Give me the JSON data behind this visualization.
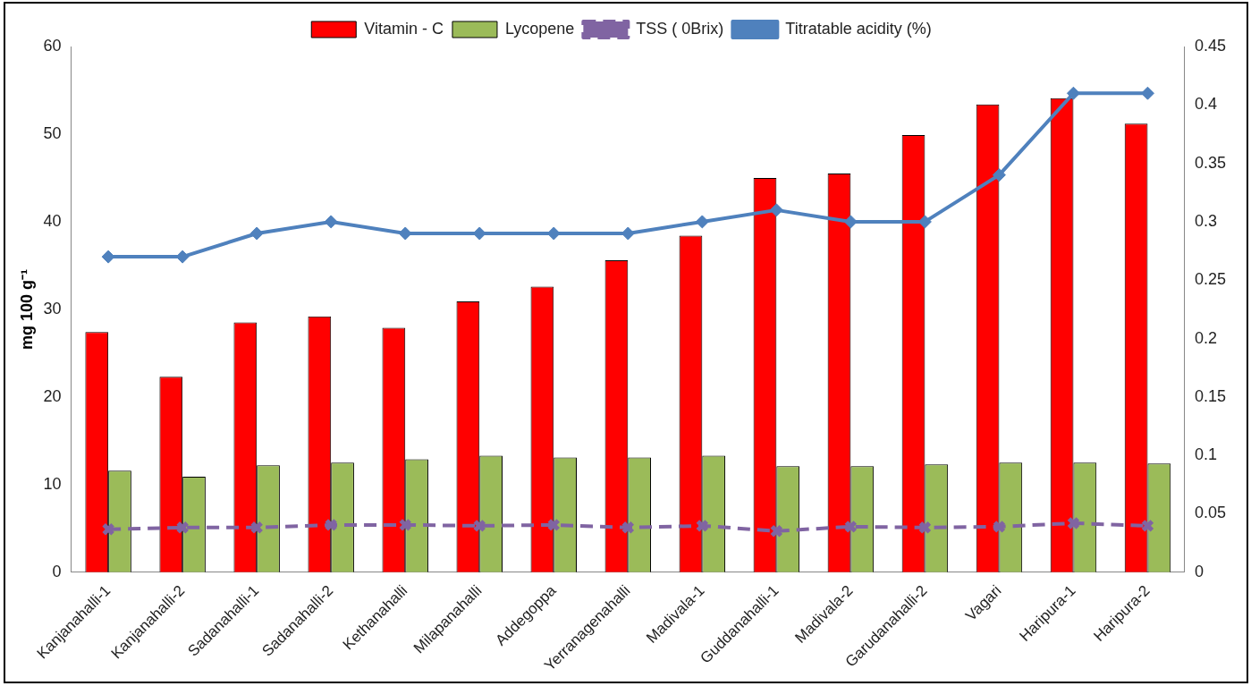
{
  "chart_data": {
    "type": "bar",
    "ylabel": "mg 100 g⁻¹",
    "categories": [
      "Kanjanahalli-1",
      "Kanjanahalli-2",
      "Sadanahalli-1",
      "Sadanahalli-2",
      "Kethanahalli",
      "Milapanahalli",
      "Addegoppa",
      "Yerranagenahalli",
      "Madivala-1",
      "Guddanahalli-1",
      "Madivala-2",
      "Garudanahalli-2",
      "Vagari",
      "Haripura-1",
      "Haripura-2"
    ],
    "series": [
      {
        "name": "Vitamin - C",
        "color": "#ff0000",
        "values": [
          27.4,
          22.3,
          28.5,
          29.2,
          27.9,
          30.9,
          32.6,
          35.6,
          38.4,
          45.0,
          45.5,
          49.9,
          53.4,
          54.1,
          51.2
        ]
      },
      {
        "name": "Lycopene",
        "color": "#9bbb59",
        "values": [
          11.6,
          10.9,
          12.2,
          12.5,
          12.9,
          13.3,
          13.1,
          13.1,
          13.3,
          12.1,
          12.1,
          12.3,
          12.5,
          12.5,
          12.4
        ]
      },
      {
        "name": "TSS ( 0Brix)",
        "type": "line",
        "color": "#8064a2",
        "marker": "cross",
        "line_style": "dashed",
        "values": [
          4.9,
          5.1,
          5.1,
          5.4,
          5.4,
          5.3,
          5.4,
          5.1,
          5.3,
          4.7,
          5.2,
          5.1,
          5.2,
          5.6,
          5.3
        ]
      },
      {
        "name": "Titratable acidity (%)",
        "type": "line",
        "axis": "y2",
        "color": "#4f81bd",
        "marker": "diamond",
        "line_style": "solid",
        "values": [
          0.27,
          0.27,
          0.29,
          0.3,
          0.29,
          0.29,
          0.29,
          0.29,
          0.3,
          0.31,
          0.3,
          0.3,
          0.34,
          0.41,
          0.41
        ]
      }
    ],
    "ylim": [
      0,
      60
    ],
    "yticks": [
      0,
      10,
      20,
      30,
      40,
      50,
      60
    ],
    "y2lim": [
      0,
      0.45
    ],
    "y2ticks": [
      0,
      0.05,
      0.1,
      0.15,
      0.2,
      0.25,
      0.3,
      0.35,
      0.4,
      0.45
    ],
    "grid": false,
    "legend": "top"
  }
}
